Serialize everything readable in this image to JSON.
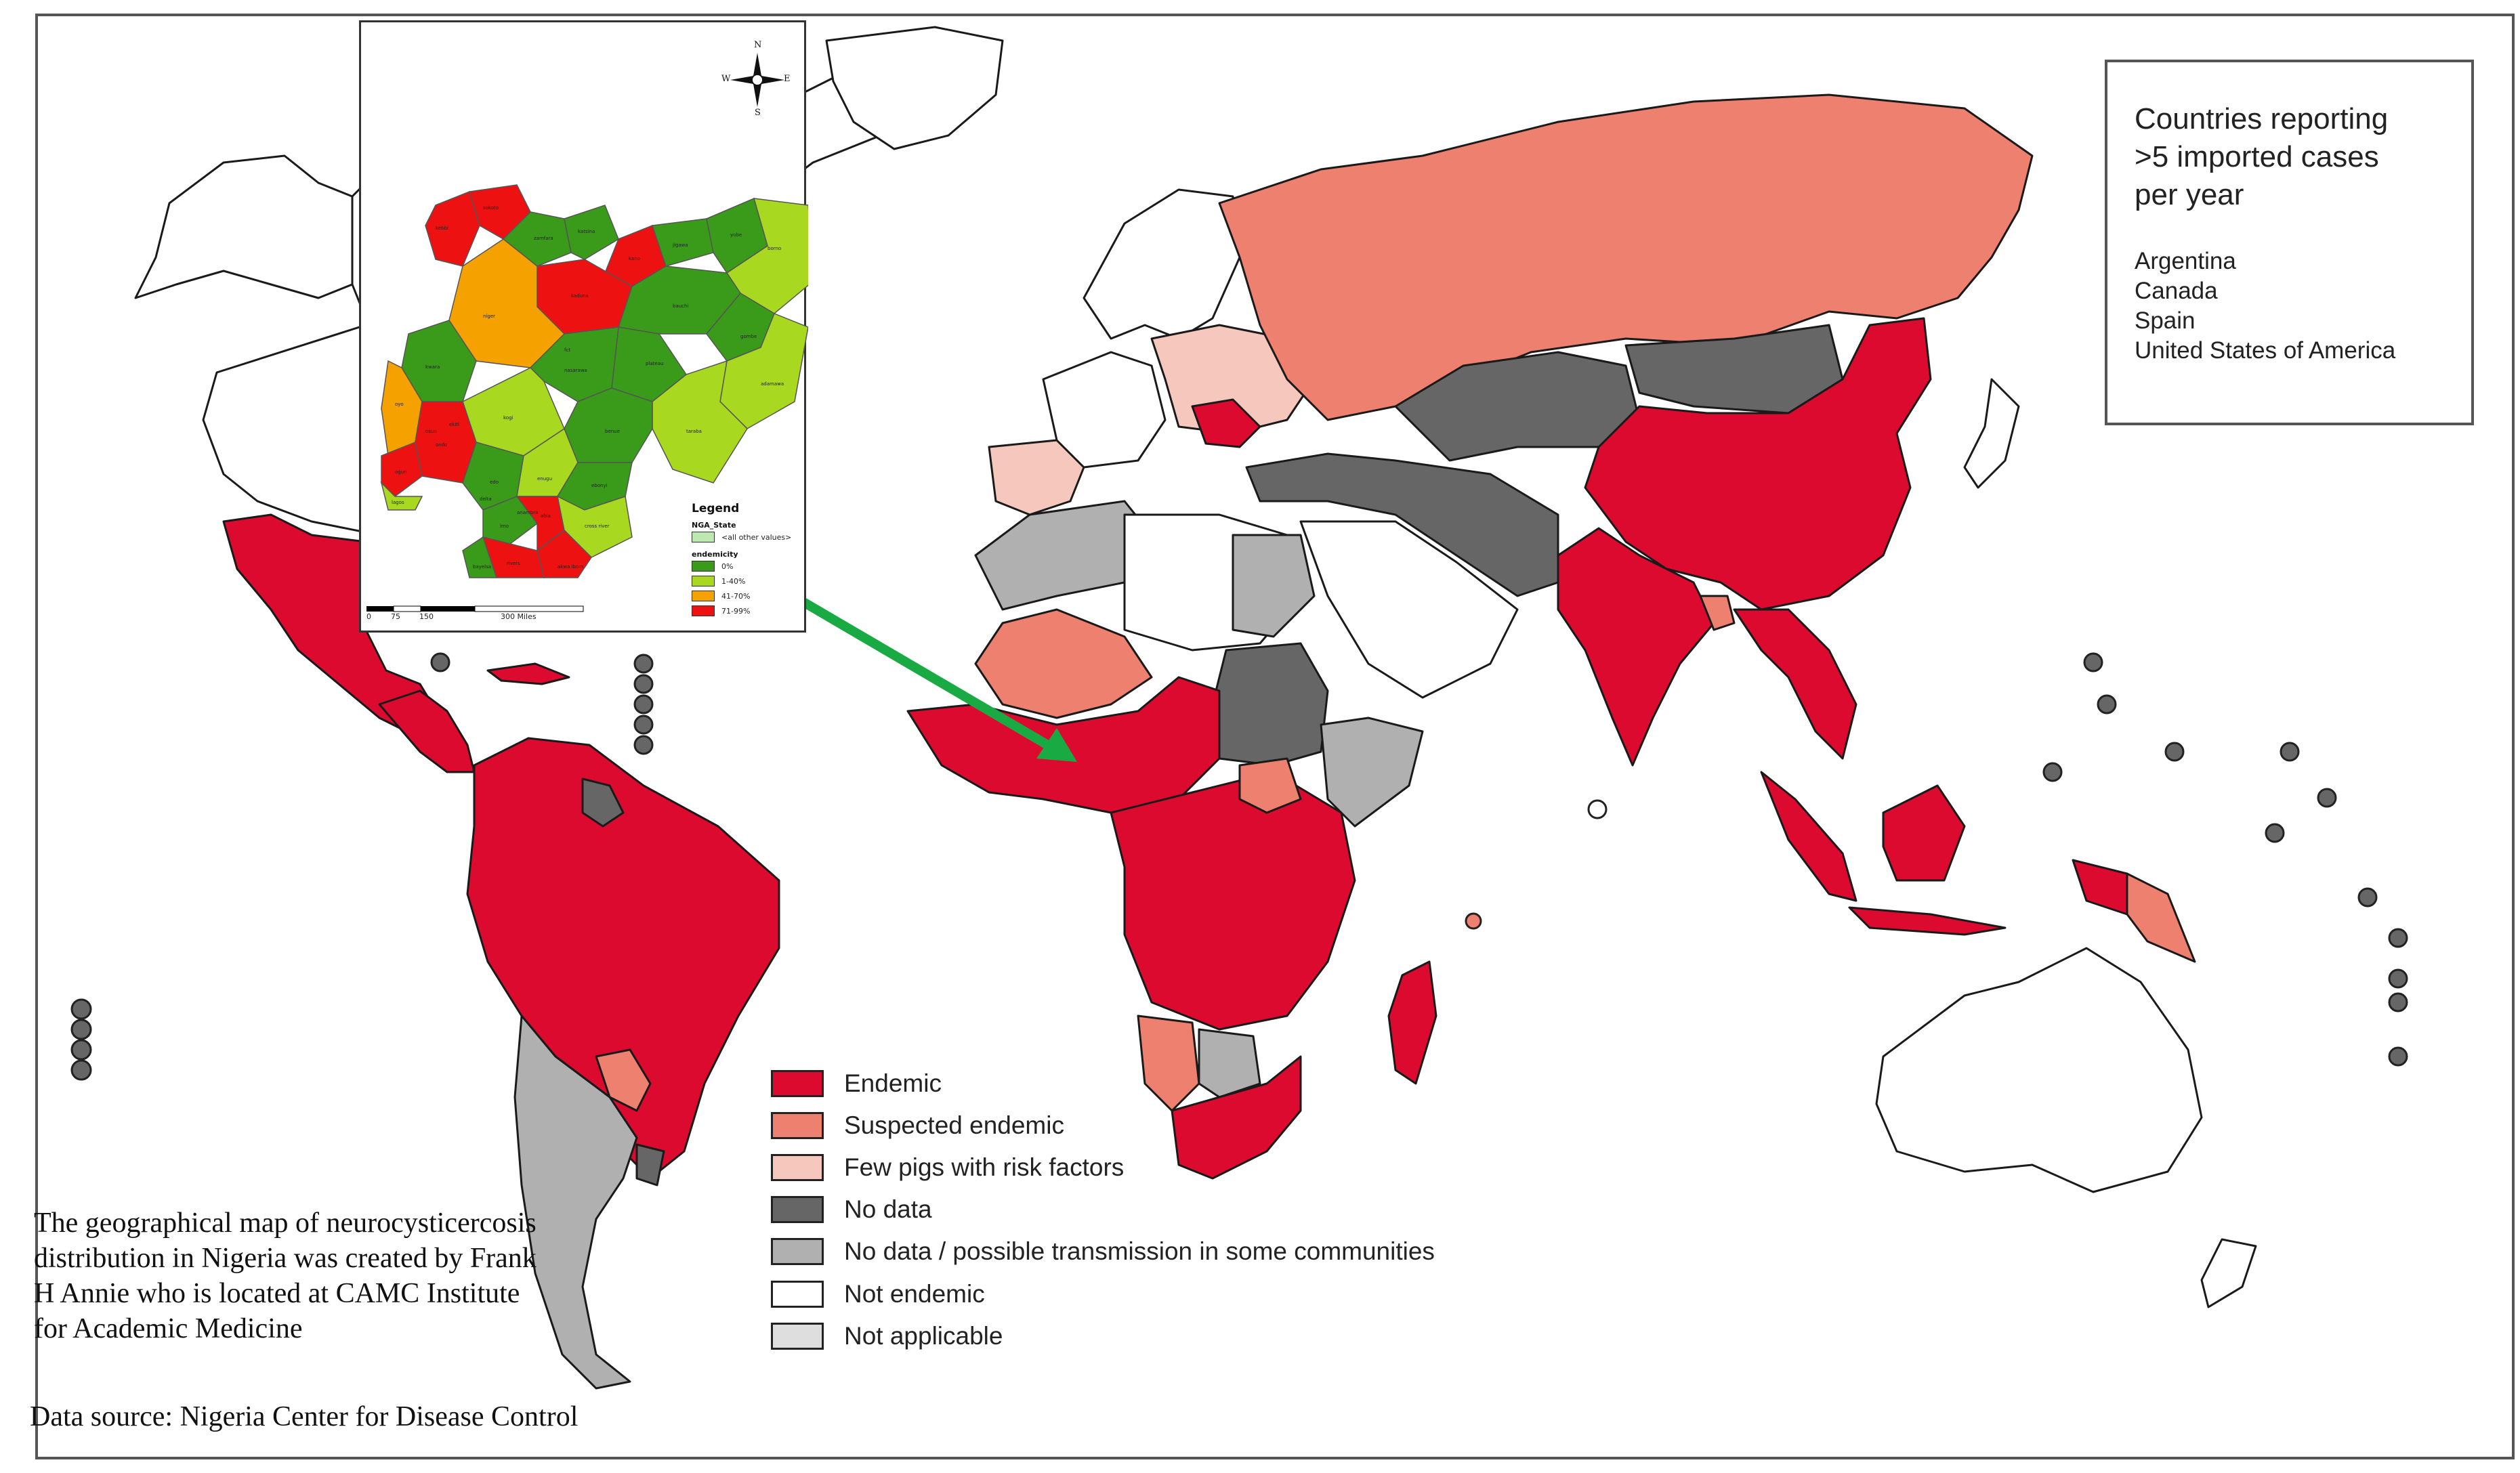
{
  "inset_map": {
    "legend_title": "Legend",
    "layer_name": "NGA_State",
    "other_values_label": "<all other values>",
    "field_name": "endemicity",
    "classes": [
      {
        "label": "0%",
        "color": "#3a9b1a"
      },
      {
        "label": "1-40%",
        "color": "#a8d820"
      },
      {
        "label": "41-70%",
        "color": "#f5a100"
      },
      {
        "label": "71-99%",
        "color": "#ee1111"
      }
    ],
    "other_color": "#bde8b0",
    "scale": {
      "ticks": [
        "0",
        "75",
        "150",
        "300 Miles"
      ]
    },
    "compass": {
      "n": "N",
      "s": "S",
      "e": "E",
      "w": "W"
    },
    "state_labels": [
      "kebbi",
      "sokoto",
      "zamfara",
      "katsina",
      "kano",
      "jigawa",
      "yobe",
      "borno",
      "kaduna",
      "bauchi",
      "gombe",
      "niger",
      "kwara",
      "plateau",
      "adamawa",
      "nasarawa",
      "taraba",
      "kogi",
      "benue",
      "oyo",
      "ogun",
      "lagos",
      "ondo",
      "edo",
      "enugu",
      "ebonyi",
      "imo",
      "abia",
      "cross river",
      "akwa ibom",
      "rivers",
      "bayelsa",
      "delta",
      "osun",
      "ekiti",
      "anambra",
      "fct"
    ]
  },
  "reporting_box": {
    "title": "Countries reporting\n>5 imported cases\nper year",
    "countries": [
      "Argentina",
      "Canada",
      "Spain",
      "United States of America"
    ]
  },
  "legend": [
    {
      "label": "Endemic",
      "color": "#dc0a2e"
    },
    {
      "label": "Suspected endemic",
      "color": "#ee8070"
    },
    {
      "label": "Few pigs with risk factors",
      "color": "#f6c7bd"
    },
    {
      "label": "No data",
      "color": "#666666"
    },
    {
      "label": "No data / possible transmission in some communities",
      "color": "#b0b0b0"
    },
    {
      "label": "Not endemic",
      "color": "#ffffff"
    },
    {
      "label": "Not applicable",
      "color": "#dedede"
    }
  ],
  "credit_text": "The geographical map of neurocysticercosis distribution in Nigeria was created by Frank H Annie who is located at CAMC Institute for Academic Medicine",
  "data_source": "Data source: Nigeria Center for Disease Control",
  "arrow_color": "#1aaa44"
}
